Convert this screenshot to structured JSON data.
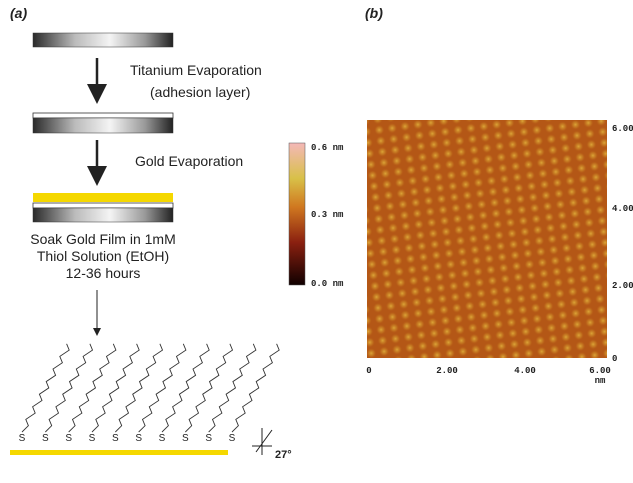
{
  "panel_a": {
    "label": "(a)",
    "step_1": [
      "Titanium Evaporation",
      "(adhesion layer)"
    ],
    "step_2": "Gold Evaporation",
    "step_3": [
      "Soak Gold Film in 1mM",
      "Thiol Solution (EtOH)",
      "12-36 hours"
    ],
    "sulfur_labels": [
      "S",
      "S",
      "S",
      "S",
      "S",
      "S",
      "S",
      "S",
      "S",
      "S"
    ],
    "angle_label": "27°"
  },
  "panel_b": {
    "label": "(b)",
    "colorbar_labels": [
      "0.6 nm",
      "0.3 nm",
      "0.0 nm"
    ],
    "x_tick_labels": [
      "0",
      "2.00",
      "4.00",
      "6.00"
    ],
    "x_unit": "nm",
    "y_tick_labels": [
      "6.00",
      "4.00",
      "2.00",
      "0"
    ]
  }
}
